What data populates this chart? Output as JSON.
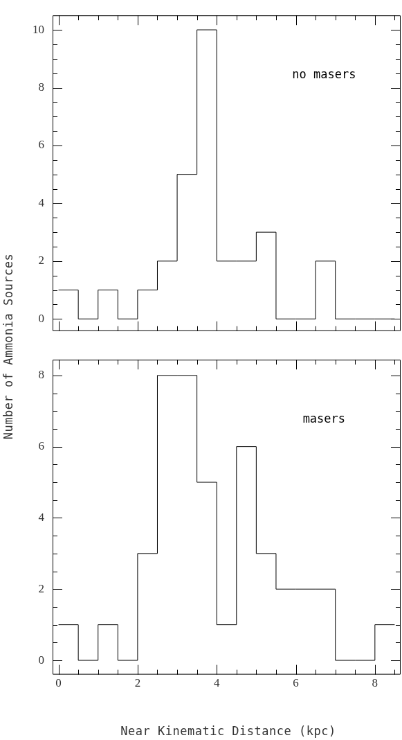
{
  "chart_data": [
    {
      "type": "histogram",
      "ylabel": "Number of Ammonia Sources",
      "annotations": [
        "no masers"
      ],
      "bins": [
        0,
        0.5,
        1,
        1.5,
        2,
        2.5,
        3,
        3.5,
        4,
        4.5,
        5,
        5.5,
        6,
        6.5,
        7,
        7.5,
        8,
        8.5
      ],
      "values": [
        1,
        0,
        1,
        0,
        1,
        2,
        5,
        10,
        2,
        2,
        3,
        0,
        0,
        2,
        0,
        0,
        0
      ],
      "color": "#000000",
      "xlim": [
        -0.15,
        8.65
      ],
      "xticks": [
        0,
        {
          "value": 0.5,
          "label": null
        },
        {
          "value": 1,
          "label": null
        },
        {
          "value": 1.5,
          "label": null
        },
        2,
        {
          "value": 2.5,
          "label": null
        },
        {
          "value": 3,
          "label": null
        },
        {
          "value": 3.5,
          "label": null
        },
        4,
        {
          "value": 4.5,
          "label": null
        },
        {
          "value": 5,
          "label": null
        },
        {
          "value": 5.5,
          "label": null
        },
        6,
        {
          "value": 6.5,
          "label": null
        },
        {
          "value": 7,
          "label": null
        },
        {
          "value": 7.5,
          "label": null
        },
        8,
        {
          "value": 8.5,
          "label": null
        }
      ],
      "ylim": [
        -0.42,
        10.5
      ],
      "yticks": [
        0,
        {
          "value": 0.5,
          "label": null
        },
        {
          "value": 1,
          "label": null
        },
        {
          "value": 1.5,
          "label": null
        },
        2,
        {
          "value": 2.5,
          "label": null
        },
        {
          "value": 3,
          "label": null
        },
        {
          "value": 3.5,
          "label": null
        },
        4,
        {
          "value": 4.5,
          "label": null
        },
        {
          "value": 5,
          "label": null
        },
        {
          "value": 5.5,
          "label": null
        },
        6,
        {
          "value": 6.5,
          "label": null
        },
        {
          "value": 7,
          "label": null
        },
        {
          "value": 7.5,
          "label": null
        },
        8,
        {
          "value": 8.5,
          "label": null
        },
        {
          "value": 9,
          "label": null
        },
        {
          "value": 9.5,
          "label": null
        },
        10
      ],
      "tick_labels": "y"
    },
    {
      "type": "histogram",
      "xlabel": "Near Kinematic Distance (kpc)",
      "annotations": [
        "masers"
      ],
      "bins": [
        0,
        0.5,
        1,
        1.5,
        2,
        2.5,
        3,
        3.5,
        4,
        4.5,
        5,
        5.5,
        6,
        6.5,
        7,
        7.5,
        8,
        8.5
      ],
      "values": [
        1,
        0,
        1,
        0,
        3,
        8,
        8,
        5,
        1,
        6,
        3,
        2,
        2,
        2,
        0,
        0,
        1
      ],
      "color": "#000000",
      "xlim": [
        -0.15,
        8.65
      ],
      "xticks": [
        0,
        {
          "value": 0.5,
          "label": null
        },
        {
          "value": 1,
          "label": null
        },
        {
          "value": 1.5,
          "label": null
        },
        2,
        {
          "value": 2.5,
          "label": null
        },
        {
          "value": 3,
          "label": null
        },
        {
          "value": 3.5,
          "label": null
        },
        4,
        {
          "value": 4.5,
          "label": null
        },
        {
          "value": 5,
          "label": null
        },
        {
          "value": 5.5,
          "label": null
        },
        6,
        {
          "value": 6.5,
          "label": null
        },
        {
          "value": 7,
          "label": null
        },
        {
          "value": 7.5,
          "label": null
        },
        8,
        {
          "value": 8.5,
          "label": null
        }
      ],
      "ylim": [
        -0.4,
        8.44
      ],
      "yticks": [
        0,
        {
          "value": 0.5,
          "label": null
        },
        {
          "value": 1,
          "label": null
        },
        {
          "value": 1.5,
          "label": null
        },
        2,
        {
          "value": 2.5,
          "label": null
        },
        {
          "value": 3,
          "label": null
        },
        {
          "value": 3.5,
          "label": null
        },
        4,
        {
          "value": 4.5,
          "label": null
        },
        {
          "value": 5,
          "label": null
        },
        {
          "value": 5.5,
          "label": null
        },
        6,
        {
          "value": 6.5,
          "label": null
        },
        {
          "value": 7,
          "label": null
        },
        {
          "value": 7.5,
          "label": null
        },
        8
      ]
    }
  ]
}
